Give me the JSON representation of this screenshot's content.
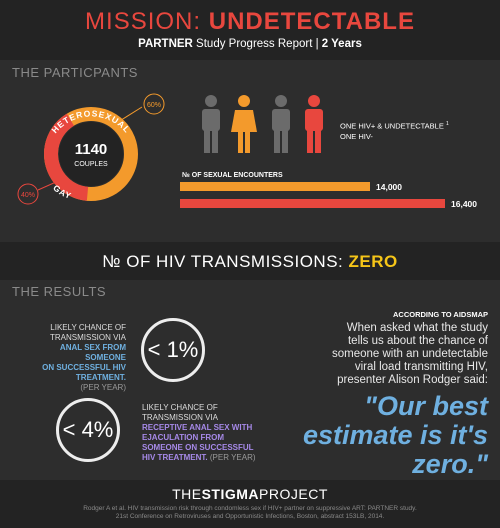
{
  "header": {
    "title_part1": "MISSION: ",
    "title_part2": "UNDETECTABLE",
    "subtitle_part1": "PARTNER",
    "subtitle_part2": " Study Progress Report  |  ",
    "subtitle_part3": "2 Years"
  },
  "participants": {
    "heading": "THE PARTICPANTS",
    "couples_count": "1140",
    "couples_label": "COUPLES",
    "ring_label_hetero": "HETEROSEXUAL",
    "ring_label_gay": "GAY",
    "hetero_pct_label": "60%",
    "gay_pct_label": "40%",
    "hetero_fraction": 0.6,
    "hetero_color": "#f39a2c",
    "gay_color": "#e8473e",
    "legend_positive": "ONE HIV+ & UNDETECTABLE",
    "legend_positive_note": "1",
    "legend_negative": "ONE HIV-",
    "positive_color": "#6b6b6b",
    "negative_color": "#f39a2c"
  },
  "encounters": {
    "label": "№ OF SEXUAL ENCOUNTERS",
    "bars": [
      {
        "value": 14000,
        "display": "14,000",
        "color": "#f39a2c"
      },
      {
        "value": 16400,
        "display": "16,400",
        "color": "#e8473e"
      }
    ]
  },
  "transmissions": {
    "label": "№ OF HIV TRANSMISSIONS: ",
    "value": "ZERO"
  },
  "results": {
    "heading": "THE RESULTS",
    "stat1": {
      "line1": "LIKELY CHANCE OF",
      "line2": "TRANSMISSION VIA",
      "hl1": "ANAL SEX FROM SOMEONE",
      "hl2": "ON SUCCESSFUL HIV",
      "hl3": "TREATMENT.",
      "per": "(PER YEAR)",
      "value": "< 1%"
    },
    "stat2": {
      "line1": "LIKELY CHANCE OF",
      "line2": "TRANSMISSION VIA",
      "hl1": "RECEPTIVE ANAL SEX WITH",
      "hl2": "EJACULATION FROM",
      "hl3": "SOMEONE ON SUCCESSFUL",
      "hl4": "HIV TREATMENT.",
      "per": "(PER YEAR)",
      "value": "< 4%"
    },
    "according": "ACCORDING TO AIDSMAP",
    "intro_lines": [
      "When asked what the study",
      "tells us about the chance of",
      "someone with an undetectable",
      "viral load  transmitting HIV,",
      "presenter Alison Rodger said:"
    ],
    "quote_lines": [
      "\"Our best",
      "estimate is it's",
      "zero.\""
    ]
  },
  "footer": {
    "brand_part1": "THE",
    "brand_part2": "STIGMA",
    "brand_part3": "PROJECT",
    "cite_line1": "Rodger A et al. HIV transmission risk through condomless sex if HIV+ partner on suppressive ART: PARTNER study.",
    "cite_line2": "21st Conference on Retroviruses and Opportunistic Infections, Boston, abstract 153LB, 2014."
  }
}
